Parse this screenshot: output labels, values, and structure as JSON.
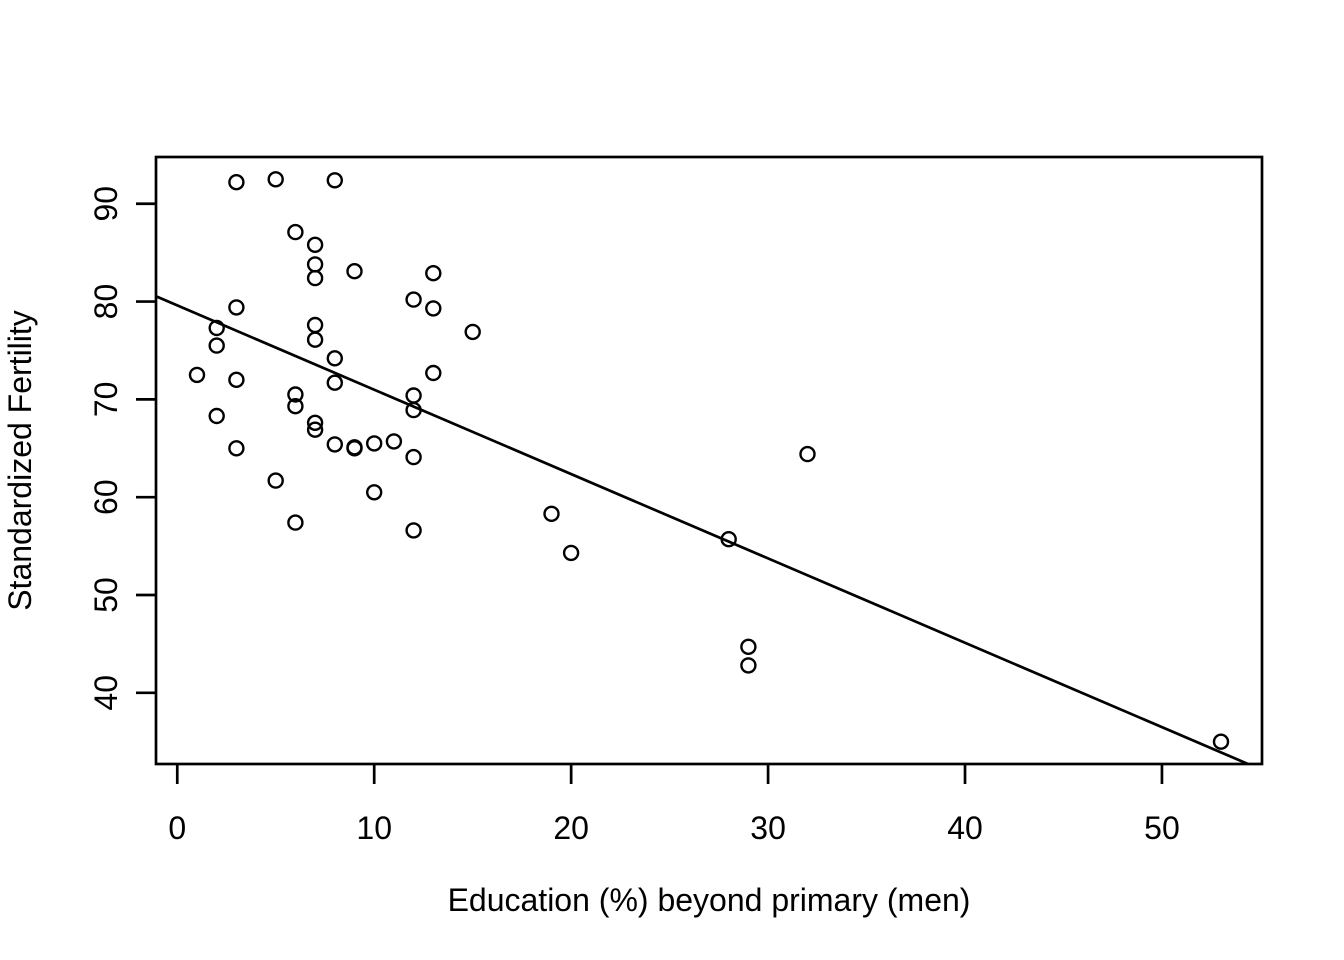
{
  "chart_data": {
    "type": "scatter",
    "title": "",
    "xlabel": "Education (%) beyond primary (men)",
    "ylabel": "Standardized Fertility",
    "x_ticks": [
      0,
      10,
      20,
      30,
      40,
      50
    ],
    "y_ticks": [
      40,
      50,
      60,
      70,
      80,
      90
    ],
    "xlim": [
      -1.08,
      55.08
    ],
    "ylim": [
      32.72,
      94.78
    ],
    "grid": false,
    "legend": null,
    "marker": "open-circle",
    "colors": {
      "points": "#000000",
      "line": "#000000",
      "axis": "#000000",
      "text": "#000000",
      "background": "#ffffff"
    },
    "points": [
      [
        12,
        80.2
      ],
      [
        9,
        83.1
      ],
      [
        5,
        92.5
      ],
      [
        7,
        85.8
      ],
      [
        15,
        76.9
      ],
      [
        7,
        76.1
      ],
      [
        7,
        83.8
      ],
      [
        8,
        92.4
      ],
      [
        7,
        82.4
      ],
      [
        13,
        82.9
      ],
      [
        6,
        87.1
      ],
      [
        12,
        64.1
      ],
      [
        7,
        66.9
      ],
      [
        12,
        68.9
      ],
      [
        5,
        61.7
      ],
      [
        2,
        68.3
      ],
      [
        8,
        71.7
      ],
      [
        28,
        55.7
      ],
      [
        20,
        54.3
      ],
      [
        9,
        65.1
      ],
      [
        10,
        65.5
      ],
      [
        3,
        65.0
      ],
      [
        12,
        56.6
      ],
      [
        6,
        57.4
      ],
      [
        1,
        72.5
      ],
      [
        8,
        74.2
      ],
      [
        3,
        72.0
      ],
      [
        10,
        60.5
      ],
      [
        19,
        58.3
      ],
      [
        8,
        65.4
      ],
      [
        2,
        75.5
      ],
      [
        6,
        69.3
      ],
      [
        2,
        77.3
      ],
      [
        6,
        70.5
      ],
      [
        3,
        79.4
      ],
      [
        9,
        65.0
      ],
      [
        3,
        92.2
      ],
      [
        13,
        79.3
      ],
      [
        12,
        70.4
      ],
      [
        11,
        65.7
      ],
      [
        13,
        72.7
      ],
      [
        32,
        64.4
      ],
      [
        7,
        77.6
      ],
      [
        7,
        67.6
      ],
      [
        53,
        35.0
      ],
      [
        29,
        44.7
      ],
      [
        29,
        42.8
      ]
    ],
    "fit_line": {
      "intercept": 79.6101,
      "slope": -0.8624
    }
  }
}
